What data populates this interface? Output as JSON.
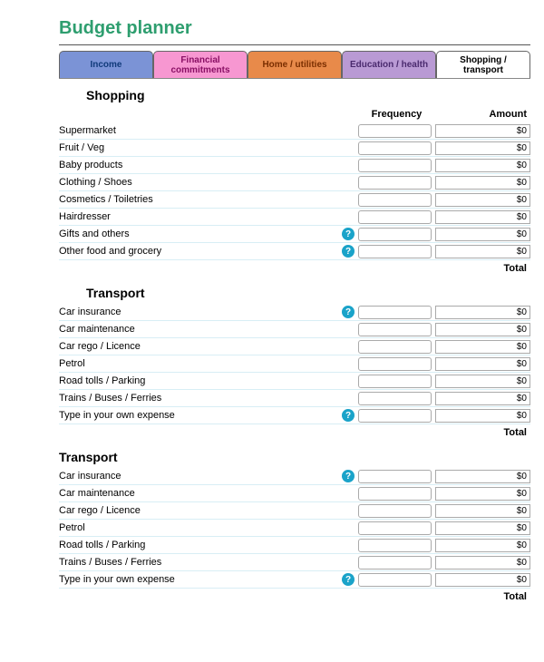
{
  "title": "Budget planner",
  "tabs": [
    {
      "label": "Income",
      "bg": "#7b93d6",
      "color": "#103a7a"
    },
    {
      "label": "Financial commitments",
      "bg": "#f797d1",
      "color": "#8a1065"
    },
    {
      "label": "Home / utilities",
      "bg": "#e88a4a",
      "color": "#7a2e00"
    },
    {
      "label": "Education / health",
      "bg": "#b99ad4",
      "color": "#4a2a6e"
    },
    {
      "label": "Shopping / transport",
      "bg": "#ffffff",
      "color": "#000000"
    }
  ],
  "headers": {
    "frequency": "Frequency",
    "amount": "Amount"
  },
  "totalLabel": "Total",
  "sections": [
    {
      "title": "Shopping",
      "rows": [
        {
          "label": "Supermarket",
          "help": false,
          "amount": "$0"
        },
        {
          "label": "Fruit / Veg",
          "help": false,
          "amount": "$0"
        },
        {
          "label": "Baby products",
          "help": false,
          "amount": "$0"
        },
        {
          "label": "Clothing / Shoes",
          "help": false,
          "amount": "$0"
        },
        {
          "label": "Cosmetics / Toiletries",
          "help": false,
          "amount": "$0"
        },
        {
          "label": "Hairdresser",
          "help": false,
          "amount": "$0"
        },
        {
          "label": "Gifts and others",
          "help": true,
          "amount": "$0"
        },
        {
          "label": "Other food and grocery",
          "help": true,
          "amount": "$0"
        }
      ]
    },
    {
      "title": "Transport",
      "rows": [
        {
          "label": "Car insurance",
          "help": true,
          "amount": "$0"
        },
        {
          "label": "Car maintenance",
          "help": false,
          "amount": "$0"
        },
        {
          "label": "Car rego / Licence",
          "help": false,
          "amount": "$0"
        },
        {
          "label": "Petrol",
          "help": false,
          "amount": "$0"
        },
        {
          "label": "Road tolls / Parking",
          "help": false,
          "amount": "$0"
        },
        {
          "label": "Trains / Buses / Ferries",
          "help": false,
          "amount": "$0"
        },
        {
          "label": "Type in your own expense",
          "help": true,
          "amount": "$0"
        }
      ]
    },
    {
      "title": "Transport",
      "rows": [
        {
          "label": "Car insurance",
          "help": true,
          "amount": "$0"
        },
        {
          "label": "Car maintenance",
          "help": false,
          "amount": "$0"
        },
        {
          "label": "Car rego / Licence",
          "help": false,
          "amount": "$0"
        },
        {
          "label": "Petrol",
          "help": false,
          "amount": "$0"
        },
        {
          "label": "Road tolls / Parking",
          "help": false,
          "amount": "$0"
        },
        {
          "label": "Trains / Buses / Ferries",
          "help": false,
          "amount": "$0"
        },
        {
          "label": "Type in your own expense",
          "help": true,
          "amount": "$0"
        }
      ]
    }
  ],
  "helpGlyph": "?",
  "colors": {
    "rowRule": "#d8eef5",
    "helpBg": "#1aa3c9"
  }
}
